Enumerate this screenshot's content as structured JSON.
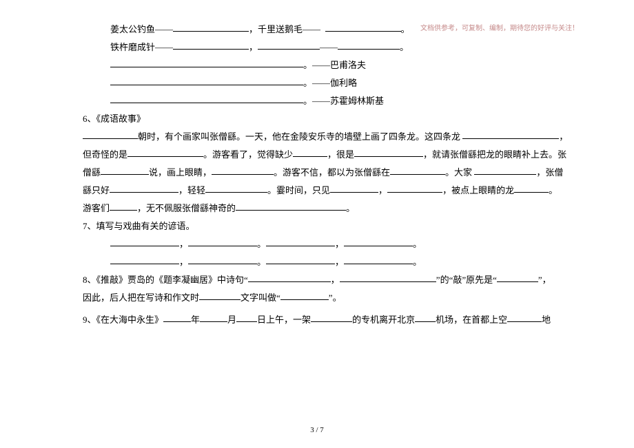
{
  "watermark": "文档供参考，可复制、编制，期待您的好评与关注！",
  "idioms": {
    "line1_a": "姜太公钓鱼——",
    "line1_b": "，千里送鹅毛——",
    "line1_c": "。",
    "line2_a": "铁杵磨成针——",
    "line2_b": "，",
    "line2_c": "——",
    "line2_d": "。",
    "attr1": "。——巴甫洛夫",
    "attr2": "。——伽利略",
    "attr3": "。——苏霍姆林斯基"
  },
  "q6": {
    "title": "6、《成语故事》",
    "p1_a": "朝时，有个画家叫张僧繇。一天，他在金陵安乐寺的墙壁上画了四条龙。这四条龙",
    "p1_b": "，",
    "p2_a": "但奇怪的是",
    "p2_b": "。游客看了，觉得缺少",
    "p2_c": "，很是",
    "p2_d": "，就请张僧繇把龙的眼睛补上去。张",
    "p3_a": "僧繇",
    "p3_b": "说，画上眼睛，",
    "p3_c": "。游客不信，都以为张僧繇在",
    "p3_d": "。大家",
    "p3_e": "，张僧",
    "p4_a": "繇只好",
    "p4_b": "，轻轻",
    "p4_c": "。霎时间，只见",
    "p4_d": "，",
    "p4_e": "，被点上眼睛的龙",
    "p4_f": "。",
    "p5_a": "游客们",
    "p5_b": "，无不佩服张僧繇神奇的",
    "p5_c": "。"
  },
  "q7": {
    "title": "7、填写与戏曲有关的谚语。",
    "sep": "，",
    "end": "。"
  },
  "q8": {
    "a": "8、《推敲》贾岛的《题李凝幽居》中诗句“",
    "b": "，",
    "c": "”的“敲”原先是“",
    "d": "”，",
    "e": "因此，后人把在写诗和作文时",
    "f": "文字叫做“",
    "g": "”。"
  },
  "q9": {
    "a": "9、《在大海中永生》",
    "b": "年",
    "c": "月",
    "d": "日上午，一架",
    "e": "的专机离开北京",
    "f": "机场，在首都上空",
    "g": "地"
  },
  "footer": "3 / 7",
  "blanks": {
    "w90": 90,
    "w100": 100,
    "w110": 110,
    "w120": 120,
    "w70": 70,
    "w80": 80,
    "w60": 60,
    "w50": 50,
    "w40": 40,
    "w140": 140,
    "w160": 160,
    "w280": 280,
    "w30": 30
  }
}
